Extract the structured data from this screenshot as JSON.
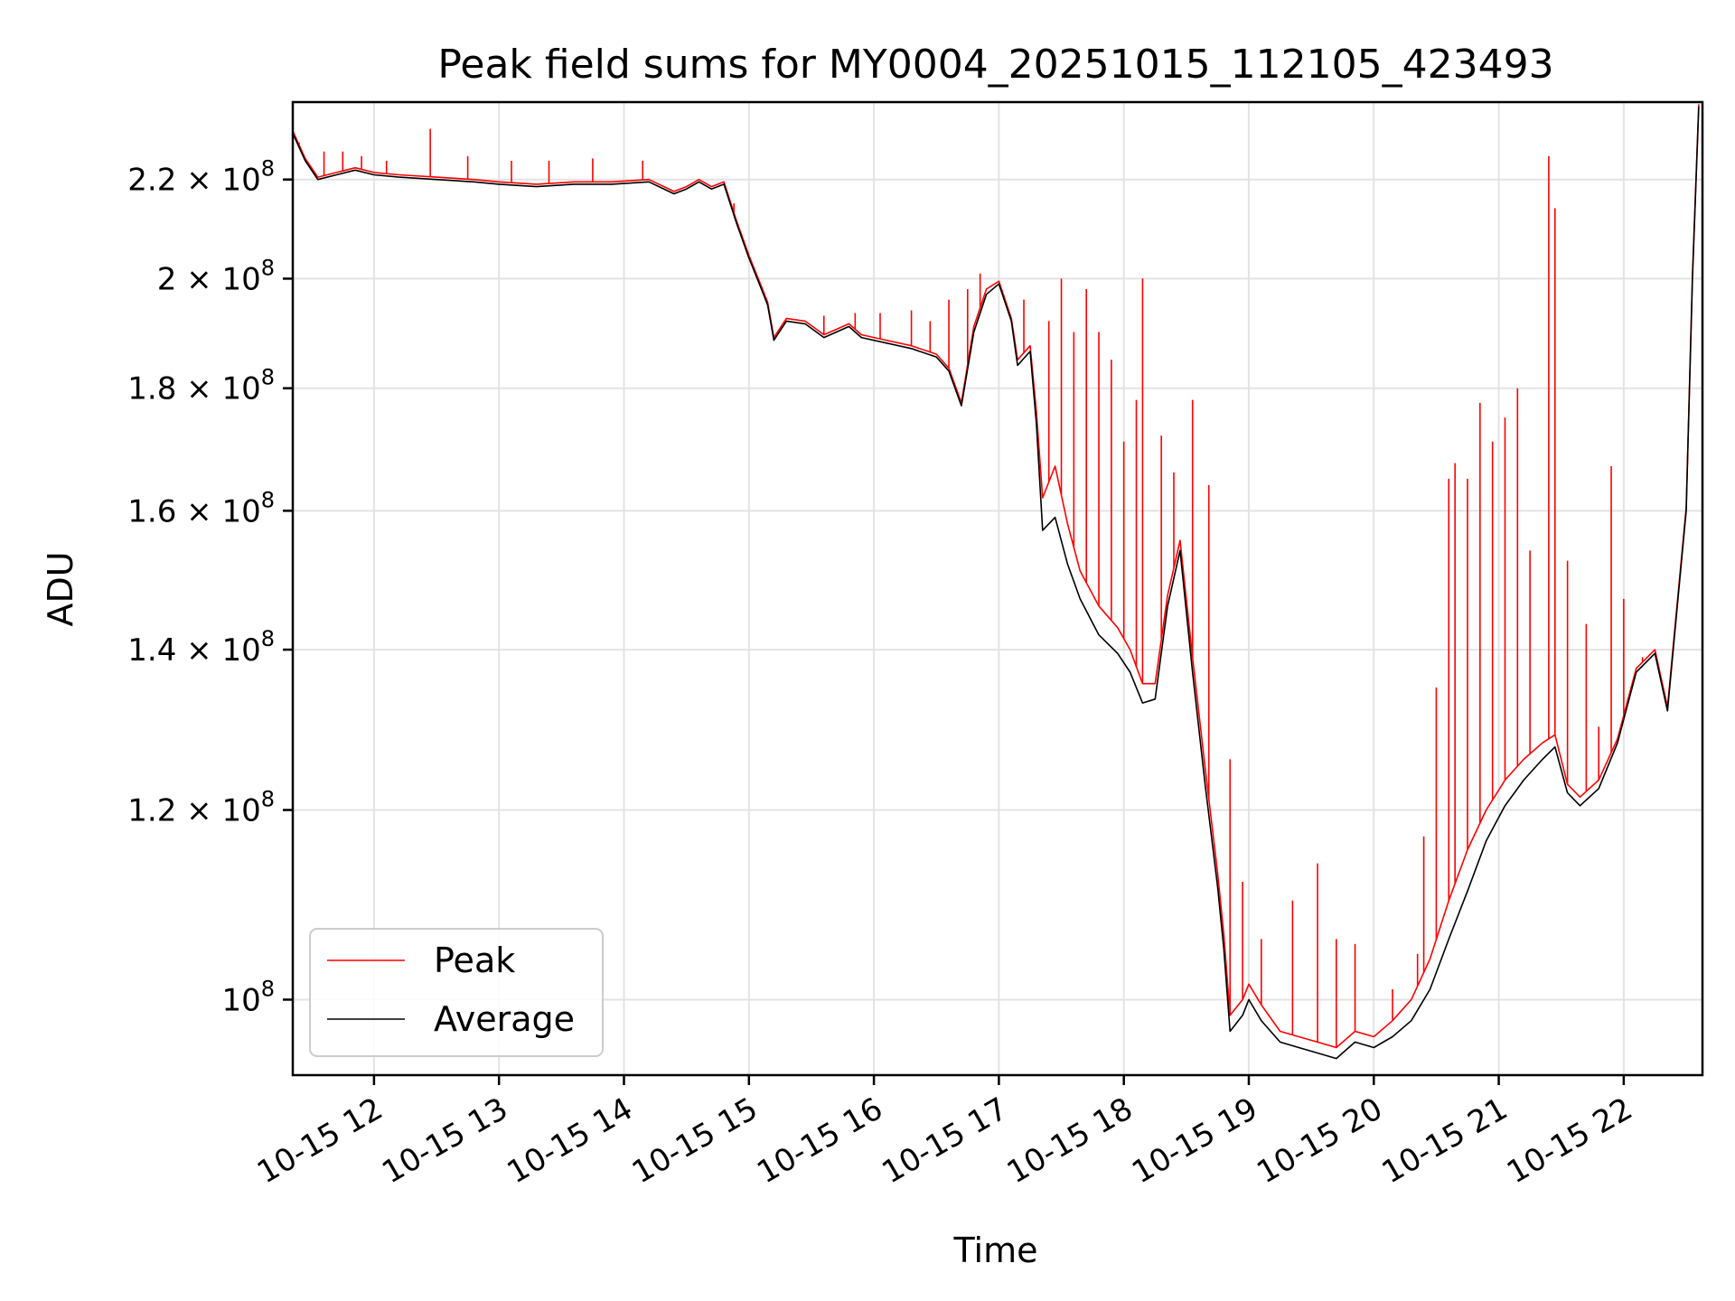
{
  "chart_data": {
    "type": "line",
    "title": "Peak field sums for MY0004_20251015_112105_423493",
    "xlabel": "Time",
    "ylabel": "ADU",
    "yscale": "log",
    "ylim": [
      93000000,
      237000000
    ],
    "xlim_hours": [
      11.35,
      22.63
    ],
    "grid": true,
    "legend_position": "lower-left",
    "x_ticks": [
      {
        "hour": 12,
        "label": "10-15 12"
      },
      {
        "hour": 13,
        "label": "10-15 13"
      },
      {
        "hour": 14,
        "label": "10-15 14"
      },
      {
        "hour": 15,
        "label": "10-15 15"
      },
      {
        "hour": 16,
        "label": "10-15 16"
      },
      {
        "hour": 17,
        "label": "10-15 17"
      },
      {
        "hour": 18,
        "label": "10-15 18"
      },
      {
        "hour": 19,
        "label": "10-15 19"
      },
      {
        "hour": 20,
        "label": "10-15 20"
      },
      {
        "hour": 21,
        "label": "10-15 21"
      },
      {
        "hour": 22,
        "label": "10-15 22"
      }
    ],
    "y_ticks": [
      {
        "value": 100000000,
        "mantissa": "",
        "exponent": "8"
      },
      {
        "value": 120000000,
        "mantissa": "1.2",
        "exponent": "8"
      },
      {
        "value": 140000000,
        "mantissa": "1.4",
        "exponent": "8"
      },
      {
        "value": 160000000,
        "mantissa": "1.6",
        "exponent": "8"
      },
      {
        "value": 180000000,
        "mantissa": "1.8",
        "exponent": "8"
      },
      {
        "value": 200000000,
        "mantissa": "2",
        "exponent": "8"
      },
      {
        "value": 220000000,
        "mantissa": "2.2",
        "exponent": "8"
      }
    ],
    "tick_base": "10",
    "times_symbol": "×",
    "series": [
      {
        "name": "Average",
        "color": "#000000",
        "points": [
          [
            11.35,
            230000000
          ],
          [
            11.45,
            224000000
          ],
          [
            11.55,
            220000000
          ],
          [
            11.7,
            221000000
          ],
          [
            11.85,
            222000000
          ],
          [
            12.0,
            221000000
          ],
          [
            12.2,
            220500000
          ],
          [
            12.5,
            220000000
          ],
          [
            12.8,
            219500000
          ],
          [
            13.0,
            219000000
          ],
          [
            13.3,
            218500000
          ],
          [
            13.6,
            219000000
          ],
          [
            13.9,
            219000000
          ],
          [
            14.2,
            219500000
          ],
          [
            14.4,
            217000000
          ],
          [
            14.5,
            218000000
          ],
          [
            14.6,
            219500000
          ],
          [
            14.7,
            218000000
          ],
          [
            14.8,
            219000000
          ],
          [
            14.9,
            211000000
          ],
          [
            15.0,
            204000000
          ],
          [
            15.1,
            198000000
          ],
          [
            15.15,
            195000000
          ],
          [
            15.2,
            188500000
          ],
          [
            15.3,
            192000000
          ],
          [
            15.45,
            191500000
          ],
          [
            15.6,
            189000000
          ],
          [
            15.7,
            190000000
          ],
          [
            15.8,
            191000000
          ],
          [
            15.9,
            189000000
          ],
          [
            16.1,
            188000000
          ],
          [
            16.3,
            187000000
          ],
          [
            16.5,
            185500000
          ],
          [
            16.6,
            183000000
          ],
          [
            16.7,
            177000000
          ],
          [
            16.8,
            190000000
          ],
          [
            16.9,
            197000000
          ],
          [
            17.0,
            199000000
          ],
          [
            17.1,
            192000000
          ],
          [
            17.15,
            184000000
          ],
          [
            17.25,
            186500000
          ],
          [
            17.3,
            174000000
          ],
          [
            17.35,
            157000000
          ],
          [
            17.45,
            159000000
          ],
          [
            17.55,
            152000000
          ],
          [
            17.65,
            147000000
          ],
          [
            17.8,
            142000000
          ],
          [
            17.95,
            139500000
          ],
          [
            18.05,
            137000000
          ],
          [
            18.15,
            133000000
          ],
          [
            18.25,
            133500000
          ],
          [
            18.35,
            146000000
          ],
          [
            18.45,
            154000000
          ],
          [
            18.55,
            137000000
          ],
          [
            18.65,
            123000000
          ],
          [
            18.75,
            111500000
          ],
          [
            18.8,
            105000000
          ],
          [
            18.85,
            97000000
          ],
          [
            18.95,
            98500000
          ],
          [
            19.0,
            100000000
          ],
          [
            19.1,
            98000000
          ],
          [
            19.25,
            96000000
          ],
          [
            19.4,
            95500000
          ],
          [
            19.55,
            95000000
          ],
          [
            19.7,
            94500000
          ],
          [
            19.85,
            96000000
          ],
          [
            20.0,
            95500000
          ],
          [
            20.15,
            96500000
          ],
          [
            20.3,
            98000000
          ],
          [
            20.45,
            101000000
          ],
          [
            20.6,
            106000000
          ],
          [
            20.75,
            111000000
          ],
          [
            20.9,
            116500000
          ],
          [
            21.05,
            120500000
          ],
          [
            21.2,
            123500000
          ],
          [
            21.35,
            126000000
          ],
          [
            21.45,
            127500000
          ],
          [
            21.55,
            122000000
          ],
          [
            21.65,
            120500000
          ],
          [
            21.8,
            122500000
          ],
          [
            21.95,
            128000000
          ],
          [
            22.1,
            137000000
          ],
          [
            22.25,
            139500000
          ],
          [
            22.35,
            132000000
          ],
          [
            22.5,
            160000000
          ],
          [
            22.55,
            200000000
          ],
          [
            22.6,
            236000000
          ]
        ]
      },
      {
        "name": "Peak",
        "color": "#ff0000",
        "points": [
          [
            11.35,
            230500000
          ],
          [
            11.45,
            224500000
          ],
          [
            11.55,
            220500000
          ],
          [
            11.7,
            221500000
          ],
          [
            11.85,
            222500000
          ],
          [
            12.0,
            221500000
          ],
          [
            12.2,
            221000000
          ],
          [
            12.5,
            220500000
          ],
          [
            12.8,
            220000000
          ],
          [
            13.0,
            219500000
          ],
          [
            13.3,
            219000000
          ],
          [
            13.6,
            219500000
          ],
          [
            13.9,
            219500000
          ],
          [
            14.2,
            220000000
          ],
          [
            14.4,
            217500000
          ],
          [
            14.5,
            218500000
          ],
          [
            14.6,
            220000000
          ],
          [
            14.7,
            218500000
          ],
          [
            14.8,
            219500000
          ],
          [
            14.9,
            211500000
          ],
          [
            15.0,
            204500000
          ],
          [
            15.1,
            198500000
          ],
          [
            15.15,
            195500000
          ],
          [
            15.2,
            189000000
          ],
          [
            15.3,
            192500000
          ],
          [
            15.45,
            192000000
          ],
          [
            15.6,
            189500000
          ],
          [
            15.7,
            190500000
          ],
          [
            15.8,
            191500000
          ],
          [
            15.9,
            189500000
          ],
          [
            16.1,
            188500000
          ],
          [
            16.3,
            187500000
          ],
          [
            16.5,
            186000000
          ],
          [
            16.6,
            183500000
          ],
          [
            16.7,
            177500000
          ],
          [
            16.8,
            191000000
          ],
          [
            16.9,
            198000000
          ],
          [
            17.0,
            199500000
          ],
          [
            17.1,
            192500000
          ],
          [
            17.15,
            185000000
          ],
          [
            17.25,
            187500000
          ],
          [
            17.3,
            176000000
          ],
          [
            17.35,
            162000000
          ],
          [
            17.45,
            167000000
          ],
          [
            17.55,
            158000000
          ],
          [
            17.65,
            151000000
          ],
          [
            17.8,
            146000000
          ],
          [
            17.95,
            143000000
          ],
          [
            18.05,
            140000000
          ],
          [
            18.15,
            135500000
          ],
          [
            18.25,
            135500000
          ],
          [
            18.35,
            147500000
          ],
          [
            18.45,
            155500000
          ],
          [
            18.55,
            139000000
          ],
          [
            18.65,
            125000000
          ],
          [
            18.75,
            113000000
          ],
          [
            18.8,
            106500000
          ],
          [
            18.85,
            98500000
          ],
          [
            18.95,
            100000000
          ],
          [
            19.0,
            101500000
          ],
          [
            19.1,
            99500000
          ],
          [
            19.25,
            97000000
          ],
          [
            19.4,
            96500000
          ],
          [
            19.55,
            96000000
          ],
          [
            19.7,
            95500000
          ],
          [
            19.85,
            97000000
          ],
          [
            20.0,
            96500000
          ],
          [
            20.15,
            98000000
          ],
          [
            20.3,
            100000000
          ],
          [
            20.45,
            104000000
          ],
          [
            20.6,
            110000000
          ],
          [
            20.75,
            115500000
          ],
          [
            20.9,
            120000000
          ],
          [
            21.05,
            123500000
          ],
          [
            21.2,
            126000000
          ],
          [
            21.35,
            128000000
          ],
          [
            21.45,
            129000000
          ],
          [
            21.55,
            123000000
          ],
          [
            21.65,
            121500000
          ],
          [
            21.8,
            123500000
          ],
          [
            21.95,
            128500000
          ],
          [
            22.1,
            137500000
          ],
          [
            22.25,
            140000000
          ],
          [
            22.35,
            132500000
          ],
          [
            22.5,
            160500000
          ],
          [
            22.55,
            200500000
          ],
          [
            22.6,
            236500000
          ]
        ],
        "spikes": [
          [
            11.4,
            228000000
          ],
          [
            11.6,
            226000000
          ],
          [
            11.75,
            226000000
          ],
          [
            11.9,
            225000000
          ],
          [
            12.1,
            224000000
          ],
          [
            12.45,
            231000000
          ],
          [
            12.75,
            225000000
          ],
          [
            13.1,
            224000000
          ],
          [
            13.4,
            224000000
          ],
          [
            13.75,
            224500000
          ],
          [
            14.15,
            224000000
          ],
          [
            14.88,
            215000000
          ],
          [
            15.6,
            193000000
          ],
          [
            15.85,
            193500000
          ],
          [
            16.05,
            193500000
          ],
          [
            16.3,
            194000000
          ],
          [
            16.45,
            192000000
          ],
          [
            16.6,
            196000000
          ],
          [
            16.75,
            198000000
          ],
          [
            16.85,
            201000000
          ],
          [
            17.2,
            196000000
          ],
          [
            17.3,
            176000000
          ],
          [
            17.4,
            192000000
          ],
          [
            17.5,
            200000000
          ],
          [
            17.6,
            190000000
          ],
          [
            17.7,
            198000000
          ],
          [
            17.8,
            190000000
          ],
          [
            17.9,
            185000000
          ],
          [
            18.0,
            171000000
          ],
          [
            18.1,
            178000000
          ],
          [
            18.15,
            200000000
          ],
          [
            18.3,
            172000000
          ],
          [
            18.4,
            166000000
          ],
          [
            18.55,
            178000000
          ],
          [
            18.68,
            164000000
          ],
          [
            18.85,
            126000000
          ],
          [
            18.95,
            112000000
          ],
          [
            19.1,
            106000000
          ],
          [
            19.35,
            110000000
          ],
          [
            19.55,
            114000000
          ],
          [
            19.7,
            106000000
          ],
          [
            19.85,
            105500000
          ],
          [
            20.15,
            101000000
          ],
          [
            20.35,
            104500000
          ],
          [
            20.4,
            117000000
          ],
          [
            20.5,
            135000000
          ],
          [
            20.6,
            165000000
          ],
          [
            20.65,
            167500000
          ],
          [
            20.75,
            165000000
          ],
          [
            20.85,
            177500000
          ],
          [
            20.95,
            171000000
          ],
          [
            21.05,
            175000000
          ],
          [
            21.15,
            180000000
          ],
          [
            21.25,
            154000000
          ],
          [
            21.4,
            225000000
          ],
          [
            21.45,
            214000000
          ],
          [
            21.55,
            152500000
          ],
          [
            21.7,
            143500000
          ],
          [
            21.8,
            130000000
          ],
          [
            21.9,
            167000000
          ],
          [
            22.0,
            147000000
          ],
          [
            22.15,
            139000000
          ]
        ]
      }
    ],
    "legend": [
      {
        "label": "Peak",
        "color": "#ff0000"
      },
      {
        "label": "Average",
        "color": "#000000"
      }
    ]
  }
}
